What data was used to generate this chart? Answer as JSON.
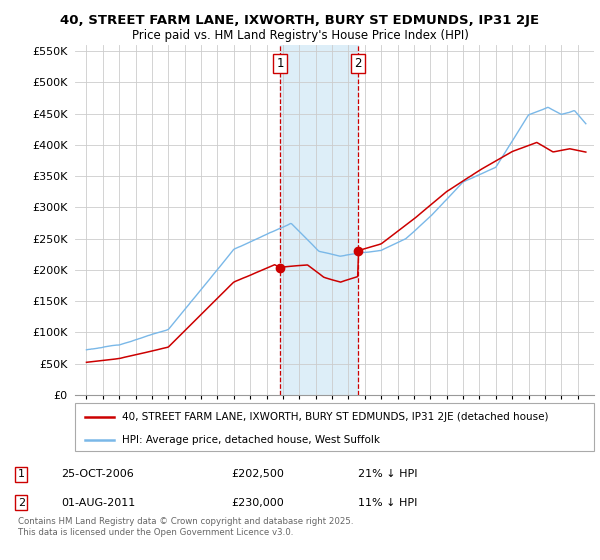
{
  "title_line1": "40, STREET FARM LANE, IXWORTH, BURY ST EDMUNDS, IP31 2JE",
  "title_line2": "Price paid vs. HM Land Registry's House Price Index (HPI)",
  "ylim": [
    0,
    560000
  ],
  "yticks": [
    0,
    50000,
    100000,
    150000,
    200000,
    250000,
    300000,
    350000,
    400000,
    450000,
    500000,
    550000
  ],
  "ytick_labels": [
    "£0",
    "£50K",
    "£100K",
    "£150K",
    "£200K",
    "£250K",
    "£300K",
    "£350K",
    "£400K",
    "£450K",
    "£500K",
    "£550K"
  ],
  "purchase1_year": 2006.82,
  "purchase1_price": 202500,
  "purchase2_year": 2011.58,
  "purchase2_price": 230000,
  "legend_entry1": "40, STREET FARM LANE, IXWORTH, BURY ST EDMUNDS, IP31 2JE (detached house)",
  "legend_entry2": "HPI: Average price, detached house, West Suffolk",
  "footer": "Contains HM Land Registry data © Crown copyright and database right 2025.\nThis data is licensed under the Open Government Licence v3.0.",
  "hpi_color": "#7ab8e8",
  "price_color": "#cc0000",
  "shading_color": "#ddeef8",
  "vline_color": "#cc0000",
  "grid_color": "#cccccc",
  "xlim_left": 1994.3,
  "xlim_right": 2026.0
}
